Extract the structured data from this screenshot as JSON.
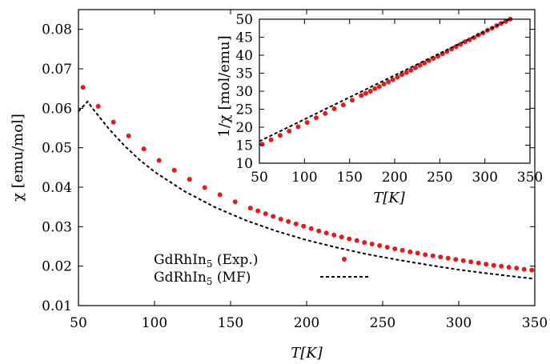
{
  "colors": {
    "exp": "#e41a1c",
    "mf": "#000000",
    "axis": "#000000"
  },
  "chart_data": [
    {
      "type": "scatter",
      "xlabel": "T[K]",
      "ylabel": "χ [emu/mol]",
      "xlim": [
        50,
        350
      ],
      "ylim": [
        0.01,
        0.085
      ],
      "xticks": [
        "50",
        "100",
        "150",
        "200",
        "250",
        "300",
        "350"
      ],
      "yticks": [
        "0.01",
        "0.02",
        "0.03",
        "0.04",
        "0.05",
        "0.06",
        "0.07",
        "0.08"
      ],
      "legend": {
        "placement": "bottom-center",
        "entries": [
          {
            "name": "GdRhIn5 (Exp.)",
            "base": "GdRhIn",
            "sub": "5",
            "suffix": " (Exp.)",
            "style": "points"
          },
          {
            "name": "GdRhIn5 (MF)",
            "base": "GdRhIn",
            "sub": "5",
            "suffix": " (MF)",
            "style": "dashed"
          }
        ]
      },
      "series": [
        {
          "name": "GdRhIn5 (Exp.)",
          "style": "points",
          "x": [
            53,
            63,
            73,
            83,
            93,
            103,
            113,
            123,
            133,
            143,
            153,
            163,
            168,
            173,
            178,
            183,
            188,
            193,
            198,
            203,
            208,
            213,
            218,
            223,
            228,
            233,
            238,
            243,
            248,
            253,
            258,
            263,
            268,
            273,
            278,
            283,
            288,
            293,
            298,
            303,
            308,
            313,
            318,
            323,
            328,
            333,
            338,
            343,
            348
          ],
          "y": [
            0.0653,
            0.0605,
            0.0565,
            0.053,
            0.0497,
            0.0468,
            0.0443,
            0.042,
            0.0399,
            0.0381,
            0.0363,
            0.0347,
            0.034,
            0.0333,
            0.0326,
            0.0319,
            0.0313,
            0.0307,
            0.0301,
            0.0295,
            0.0289,
            0.0284,
            0.0279,
            0.0274,
            0.0269,
            0.0265,
            0.026,
            0.0256,
            0.0252,
            0.0248,
            0.0244,
            0.024,
            0.0236,
            0.0233,
            0.0229,
            0.0226,
            0.0223,
            0.022,
            0.0217,
            0.0214,
            0.0211,
            0.0208,
            0.0205,
            0.0202,
            0.02,
            0.0197,
            0.0195,
            0.0192,
            0.019
          ]
        },
        {
          "name": "GdRhIn5 (MF)",
          "style": "dashed",
          "x": [
            50,
            56,
            60,
            70,
            80,
            90,
            100,
            120,
            140,
            160,
            180,
            200,
            220,
            240,
            260,
            280,
            300,
            320,
            340,
            350
          ],
          "y": [
            0.0592,
            0.0617,
            0.0596,
            0.0548,
            0.0506,
            0.047,
            0.0439,
            0.0389,
            0.0349,
            0.0316,
            0.0289,
            0.0266,
            0.0247,
            0.023,
            0.0216,
            0.0203,
            0.0191,
            0.0181,
            0.0172,
            0.0168
          ]
        }
      ]
    },
    {
      "type": "scatter",
      "xlabel": "T[K]",
      "ylabel": "1/χ [mol/emu]",
      "xlim": [
        50,
        350
      ],
      "ylim": [
        10,
        50
      ],
      "xticks": [
        "50",
        "100",
        "150",
        "200",
        "250",
        "300",
        "350"
      ],
      "yticks": [
        "10",
        "15",
        "20",
        "25",
        "30",
        "35",
        "40",
        "45",
        "50"
      ],
      "series": [
        {
          "name": "",
          "style": "points",
          "x": [
            53,
            63,
            73,
            83,
            93,
            103,
            113,
            123,
            133,
            143,
            153,
            163,
            168,
            173,
            178,
            183,
            188,
            193,
            198,
            203,
            208,
            213,
            218,
            223,
            228,
            233,
            238,
            243,
            248,
            253,
            258,
            263,
            268,
            273,
            278,
            283,
            288,
            293,
            298,
            303,
            308,
            313,
            318,
            323,
            328
          ],
          "y": [
            15.3,
            16.5,
            17.7,
            18.9,
            20.1,
            21.3,
            22.6,
            23.8,
            25.1,
            26.2,
            27.5,
            28.8,
            29.4,
            30.0,
            30.7,
            31.3,
            32.0,
            32.6,
            33.2,
            33.9,
            34.6,
            35.2,
            35.8,
            36.5,
            37.2,
            37.8,
            38.5,
            39.1,
            39.7,
            40.4,
            41.0,
            41.7,
            42.4,
            43.0,
            43.7,
            44.3,
            44.9,
            45.6,
            46.2,
            46.9,
            47.5,
            48.2,
            48.8,
            49.4,
            50.0
          ]
        },
        {
          "name": "",
          "style": "dashed",
          "x": [
            50,
            330
          ],
          "y": [
            16.1,
            50.3
          ]
        }
      ]
    }
  ]
}
